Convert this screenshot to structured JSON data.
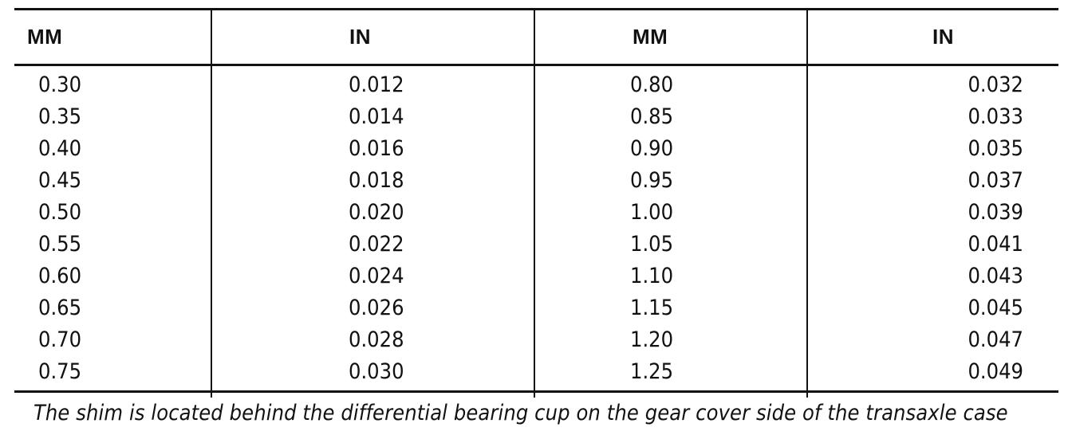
{
  "table": {
    "headers": [
      "MM",
      "IN",
      "MM",
      "IN"
    ],
    "rows": [
      [
        "0.30",
        "0.012",
        "0.80",
        "0.032"
      ],
      [
        "0.35",
        "0.014",
        "0.85",
        "0.033"
      ],
      [
        "0.40",
        "0.016",
        "0.90",
        "0.035"
      ],
      [
        "0.45",
        "0.018",
        "0.95",
        "0.037"
      ],
      [
        "0.50",
        "0.020",
        "1.00",
        "0.039"
      ],
      [
        "0.55",
        "0.022",
        "1.05",
        "0.041"
      ],
      [
        "0.60",
        "0.024",
        "1.10",
        "0.043"
      ],
      [
        "0.65",
        "0.026",
        "1.15",
        "0.045"
      ],
      [
        "0.70",
        "0.028",
        "1.20",
        "0.047"
      ],
      [
        "0.75",
        "0.030",
        "1.25",
        "0.049"
      ]
    ]
  },
  "footnote": "The shim is located behind the differential bearing cup on the gear cover side of the transaxle case"
}
